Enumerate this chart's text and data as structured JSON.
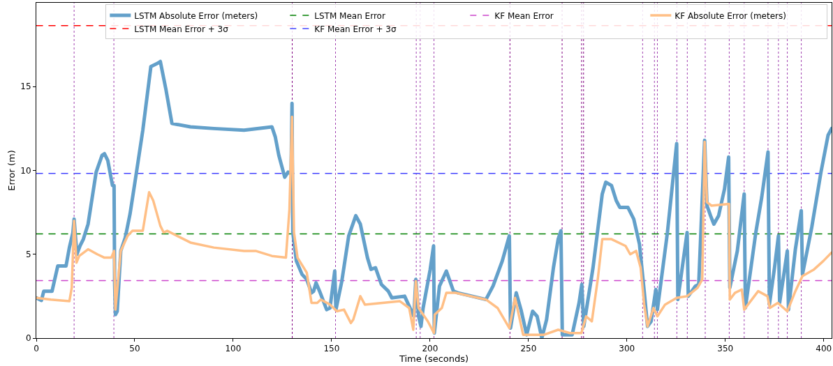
{
  "chart_data": {
    "type": "line",
    "xlabel": "Time (seconds)",
    "ylabel": "Error (m)",
    "xlim": [
      0,
      404
    ],
    "xticks": [
      0,
      50,
      100,
      150,
      200,
      250,
      300,
      350,
      400
    ],
    "ylim": [
      0,
      20
    ],
    "yticks": [
      0,
      5,
      10,
      15
    ],
    "grid": false,
    "legend": "top right",
    "line_style": "solid",
    "marker": "none",
    "series": [
      {
        "name": "LSTM Absolute Error (meters)",
        "color": "#63a0ca",
        "x": [
          0,
          2.6,
          3.8,
          8,
          10.9,
          15.1,
          16.8,
          18.6,
          19.2,
          20.6,
          22.2,
          23.9,
          26.3,
          30.4,
          33.4,
          34.6,
          36.3,
          38.7,
          39.5,
          39.8,
          40.2,
          41.1,
          42.9,
          45.2,
          47.6,
          50.5,
          54.1,
          58.2,
          61.8,
          63,
          65.9,
          68.9,
          78.3,
          90.2,
          105.5,
          119.7,
          121.4,
          123.2,
          126.2,
          127.9,
          129.4,
          129.9,
          130.3,
          132.1,
          135,
          137.4,
          139.8,
          140.9,
          142.1,
          143.9,
          147.5,
          149.2,
          151.6,
          152.2,
          155.2,
          158.7,
          162.3,
          164.6,
          168.2,
          170,
          172.3,
          175.3,
          178.8,
          180.6,
          187.1,
          191.8,
          192.8,
          194.2,
          195.4,
          196.5,
          200.1,
          201.8,
          202.2,
          204.8,
          208.3,
          211.9,
          214.2,
          228.4,
          232,
          236.7,
          240.3,
          240.9,
          243.8,
          246.2,
          249.1,
          252.1,
          254.4,
          256.8,
          259.2,
          262.7,
          265.1,
          266.5,
          267.2,
          272.2,
          275.7,
          277.1,
          278.1,
          282.8,
          287.5,
          289.3,
          292.2,
          294.6,
          296.4,
          300.5,
          303.5,
          306.4,
          308.8,
          310.5,
          312.3,
          314.7,
          315.5,
          320.6,
          325.3,
          325.9,
          330.6,
          331.2,
          334.8,
          336.5,
          339.5,
          340.7,
          342.5,
          344.2,
          346.6,
          349.6,
          351.7,
          352.3,
          356.1,
          359.6,
          360.2,
          365.5,
          368.5,
          371.7,
          372.4,
          375,
          377,
          377.6,
          381.5,
          382.1,
          385.6,
          388.6,
          389.2,
          393.9,
          398.6,
          402.2,
          404
        ],
        "values": [
          2.4,
          2.25,
          2.8,
          2.8,
          4.3,
          4.3,
          5.4,
          6.3,
          7.1,
          5.0,
          5.5,
          5.9,
          6.8,
          9.9,
          10.9,
          11.0,
          10.6,
          9.1,
          9.1,
          3.2,
          1.4,
          1.6,
          5.2,
          6.0,
          7.4,
          9.6,
          12.4,
          16.2,
          16.4,
          16.5,
          14.8,
          12.8,
          12.6,
          12.5,
          12.4,
          12.6,
          12.0,
          10.9,
          9.6,
          9.9,
          9.8,
          14.0,
          6.3,
          4.6,
          3.8,
          3.5,
          2.7,
          2.8,
          3.3,
          2.8,
          1.7,
          1.8,
          4.0,
          1.7,
          3.4,
          6.1,
          7.3,
          6.8,
          4.8,
          4.1,
          4.2,
          3.2,
          2.8,
          2.4,
          2.5,
          1.3,
          3.5,
          1.3,
          0.7,
          1.8,
          4.1,
          5.5,
          0.3,
          3.1,
          4.0,
          2.8,
          2.7,
          2.3,
          3.1,
          4.6,
          6.1,
          0.6,
          2.7,
          1.7,
          0.2,
          1.6,
          1.3,
          0.0,
          1.1,
          4.2,
          5.9,
          6.4,
          0.2,
          0.2,
          2.1,
          3.2,
          0.7,
          4.2,
          8.6,
          9.3,
          9.1,
          8.2,
          7.8,
          7.8,
          7.1,
          5.6,
          2.8,
          0.7,
          1.0,
          2.9,
          1.7,
          6.3,
          11.6,
          2.3,
          6.3,
          2.5,
          3.1,
          3.2,
          11.8,
          7.9,
          7.3,
          6.8,
          7.3,
          8.9,
          10.8,
          3.0,
          5.2,
          8.6,
          1.8,
          6.3,
          8.4,
          11.1,
          2.0,
          4.2,
          6.1,
          2.1,
          5.2,
          1.7,
          5.3,
          7.6,
          3.8,
          6.6,
          9.9,
          12.1,
          12.5
        ]
      },
      {
        "name": "KF Absolute Error (meters)",
        "color": "#ffbf86",
        "x": [
          0,
          7.4,
          16.8,
          18,
          19.2,
          20.4,
          21.8,
          26.3,
          31,
          34.6,
          38.1,
          39.5,
          40.2,
          42.9,
          46.4,
          48.8,
          54.1,
          57.3,
          59.4,
          63,
          64.7,
          66.5,
          78.3,
          90.2,
          105.5,
          111.4,
          119.7,
          126.8,
          128.6,
          129.9,
          130.9,
          132.7,
          137.4,
          139.8,
          142.7,
          144.5,
          149.2,
          152.7,
          156.3,
          159.8,
          161,
          164.6,
          166.9,
          184.7,
          189.4,
          191.5,
          192.8,
          194.2,
          196.5,
          198.9,
          202,
          202.4,
          206,
          208.3,
          213,
          228.4,
          234.3,
          240.3,
          243.2,
          247.3,
          258,
          265.1,
          271,
          276.9,
          279.3,
          282.2,
          285.2,
          287.5,
          292.2,
          299.3,
          301.7,
          304.7,
          307,
          308.8,
          310.5,
          313.5,
          315.5,
          319.4,
          325.3,
          330.6,
          335.9,
          338.3,
          339.5,
          340.7,
          343,
          351.9,
          352.3,
          354.9,
          358.4,
          359.6,
          366.7,
          371.4,
          372.6,
          376.7,
          381.5,
          385.6,
          389.2,
          395.1,
          399.8,
          404
        ],
        "values": [
          2.4,
          2.3,
          2.2,
          3.0,
          7.0,
          4.5,
          4.9,
          5.3,
          5.0,
          4.8,
          4.8,
          5.2,
          1.7,
          5.2,
          6.1,
          6.4,
          6.4,
          8.7,
          8.2,
          6.7,
          6.3,
          6.4,
          5.7,
          5.4,
          5.2,
          5.2,
          4.9,
          4.8,
          7.7,
          13.2,
          6.3,
          4.8,
          3.9,
          2.1,
          2.1,
          2.3,
          2.0,
          1.6,
          1.7,
          0.9,
          1.1,
          2.5,
          2.0,
          2.2,
          1.8,
          0.5,
          3.4,
          1.8,
          1.4,
          1.0,
          0.3,
          1.4,
          1.8,
          2.7,
          2.7,
          2.3,
          1.8,
          0.6,
          2.4,
          0.2,
          0.2,
          0.5,
          0.3,
          0.3,
          1.3,
          1.0,
          3.5,
          5.9,
          5.9,
          5.5,
          5.0,
          5.2,
          4.2,
          2.0,
          0.7,
          1.8,
          1.3,
          2.0,
          2.4,
          2.5,
          3.0,
          3.5,
          11.7,
          8.1,
          7.9,
          8.0,
          2.3,
          2.7,
          2.9,
          1.7,
          2.8,
          2.5,
          1.8,
          2.1,
          1.6,
          2.8,
          3.7,
          4.1,
          4.6,
          5.1
        ]
      }
    ],
    "ref_lines": [
      {
        "axis": "y",
        "value": 6.22,
        "label": "LSTM Mean Error",
        "color": "#008000",
        "line_style": "dashed"
      },
      {
        "axis": "y",
        "value": 18.64,
        "label": "LSTM Mean Error + 3σ",
        "color": "#ff0000",
        "line_style": "dashed"
      },
      {
        "axis": "y",
        "value": 3.43,
        "label": "KF Mean Error",
        "color": "#cc44cc",
        "line_style": "dashed"
      },
      {
        "axis": "y",
        "value": 9.82,
        "label": "KF Mean Error + 3σ",
        "color": "#4444ff",
        "line_style": "dashed"
      },
      {
        "axis": "x",
        "value": 19.2,
        "color": "#a040b0",
        "line_style": "dotted"
      },
      {
        "axis": "x",
        "value": 39.4,
        "color": "#a040b0",
        "line_style": "dotted"
      },
      {
        "axis": "x",
        "value": 130,
        "color": "#800080",
        "line_style": "dotted"
      },
      {
        "axis": "x",
        "value": 152,
        "color": "#a040b0",
        "line_style": "dotted"
      },
      {
        "axis": "x",
        "value": 193,
        "color": "#a040b0",
        "line_style": "dotted"
      },
      {
        "axis": "x",
        "value": 195,
        "color": "#a040b0",
        "line_style": "dotted"
      },
      {
        "axis": "x",
        "value": 202,
        "color": "#a040b0",
        "line_style": "dotted"
      },
      {
        "axis": "x",
        "value": 240.6,
        "color": "#800080",
        "line_style": "dotted"
      },
      {
        "axis": "x",
        "value": 267.1,
        "color": "#800080",
        "line_style": "dotted"
      },
      {
        "axis": "x",
        "value": 277,
        "color": "#800080",
        "line_style": "dotted"
      },
      {
        "axis": "x",
        "value": 278,
        "color": "#800080",
        "line_style": "dotted"
      },
      {
        "axis": "x",
        "value": 308,
        "color": "#a040b0",
        "line_style": "dotted"
      },
      {
        "axis": "x",
        "value": 314,
        "color": "#a040b0",
        "line_style": "dotted"
      },
      {
        "axis": "x",
        "value": 315.5,
        "color": "#a040b0",
        "line_style": "dotted"
      },
      {
        "axis": "x",
        "value": 325.4,
        "color": "#a040b0",
        "line_style": "dotted"
      },
      {
        "axis": "x",
        "value": 330.7,
        "color": "#a040b0",
        "line_style": "dotted"
      },
      {
        "axis": "x",
        "value": 339.8,
        "color": "#a040b0",
        "line_style": "dotted"
      },
      {
        "axis": "x",
        "value": 352,
        "color": "#a040b0",
        "line_style": "dotted"
      },
      {
        "axis": "x",
        "value": 359.6,
        "color": "#a040b0",
        "line_style": "dotted"
      },
      {
        "axis": "x",
        "value": 371.7,
        "color": "#a040b0",
        "line_style": "dotted"
      },
      {
        "axis": "x",
        "value": 377,
        "color": "#a040b0",
        "line_style": "dotted"
      },
      {
        "axis": "x",
        "value": 381.5,
        "color": "#a040b0",
        "line_style": "dotted"
      },
      {
        "axis": "x",
        "value": 388.6,
        "color": "#a040b0",
        "line_style": "dotted"
      }
    ]
  }
}
